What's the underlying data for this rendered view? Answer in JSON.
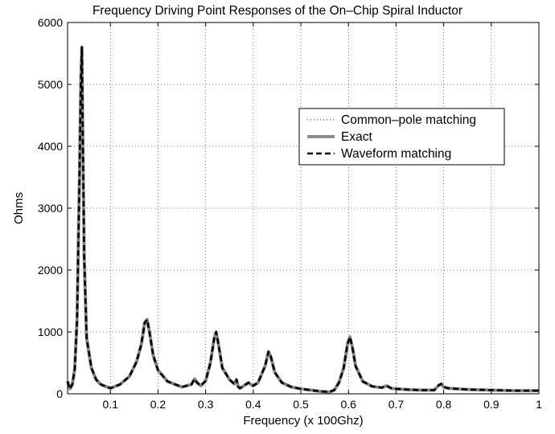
{
  "chart_data": {
    "type": "line",
    "title": "Frequency Driving Point Responses of the On–Chip Spiral Inductor",
    "xlabel": "Frequency (x 100Ghz)",
    "ylabel": "Ohms",
    "xlim": [
      0.01,
      1.0
    ],
    "ylim": [
      0,
      6000
    ],
    "xticks": [
      0.1,
      0.2,
      0.3,
      0.4,
      0.5,
      0.6,
      0.7,
      0.8,
      0.9,
      1
    ],
    "xtick_labels": [
      "0.1",
      "0.2",
      "0.3",
      "0.4",
      "0.5",
      "0.6",
      "0.7",
      "0.8",
      "0.9",
      "1"
    ],
    "yticks": [
      0,
      1000,
      2000,
      3000,
      4000,
      5000,
      6000
    ],
    "ytick_labels": [
      "0",
      "1000",
      "2000",
      "3000",
      "4000",
      "5000",
      "6000"
    ],
    "grid": true,
    "legend_position": "upper-right",
    "series": [
      {
        "name": "Common–pole matching",
        "style": "dotted",
        "color": "#444444"
      },
      {
        "name": "Exact",
        "style": "solid",
        "color": "#8c8c8c"
      },
      {
        "name": "Waveform matching",
        "style": "dashed",
        "color": "#000000"
      }
    ],
    "x": [
      0.01,
      0.015,
      0.02,
      0.025,
      0.03,
      0.035,
      0.038,
      0.04,
      0.042,
      0.045,
      0.05,
      0.06,
      0.07,
      0.08,
      0.1,
      0.12,
      0.14,
      0.155,
      0.165,
      0.172,
      0.177,
      0.182,
      0.19,
      0.2,
      0.22,
      0.25,
      0.27,
      0.277,
      0.282,
      0.29,
      0.3,
      0.31,
      0.318,
      0.322,
      0.327,
      0.335,
      0.35,
      0.36,
      0.365,
      0.368,
      0.372,
      0.38,
      0.39,
      0.395,
      0.4,
      0.41,
      0.425,
      0.432,
      0.437,
      0.445,
      0.46,
      0.48,
      0.5,
      0.52,
      0.54,
      0.56,
      0.57,
      0.58,
      0.59,
      0.598,
      0.603,
      0.608,
      0.615,
      0.63,
      0.65,
      0.67,
      0.68,
      0.69,
      0.7,
      0.72,
      0.75,
      0.78,
      0.79,
      0.795,
      0.8,
      0.81,
      0.85,
      0.9,
      0.95,
      1.0
    ],
    "y": [
      200,
      80,
      150,
      400,
      1200,
      3500,
      5100,
      5600,
      4200,
      2200,
      900,
      420,
      230,
      150,
      90,
      150,
      280,
      520,
      800,
      1150,
      1200,
      1000,
      620,
      380,
      200,
      110,
      150,
      240,
      180,
      130,
      210,
      500,
      900,
      1000,
      800,
      420,
      230,
      160,
      230,
      120,
      90,
      130,
      180,
      150,
      130,
      180,
      450,
      680,
      600,
      350,
      180,
      110,
      80,
      60,
      40,
      30,
      60,
      180,
      420,
      800,
      920,
      760,
      450,
      200,
      120,
      100,
      130,
      90,
      80,
      70,
      60,
      60,
      140,
      160,
      110,
      90,
      70,
      60,
      50,
      50
    ]
  }
}
